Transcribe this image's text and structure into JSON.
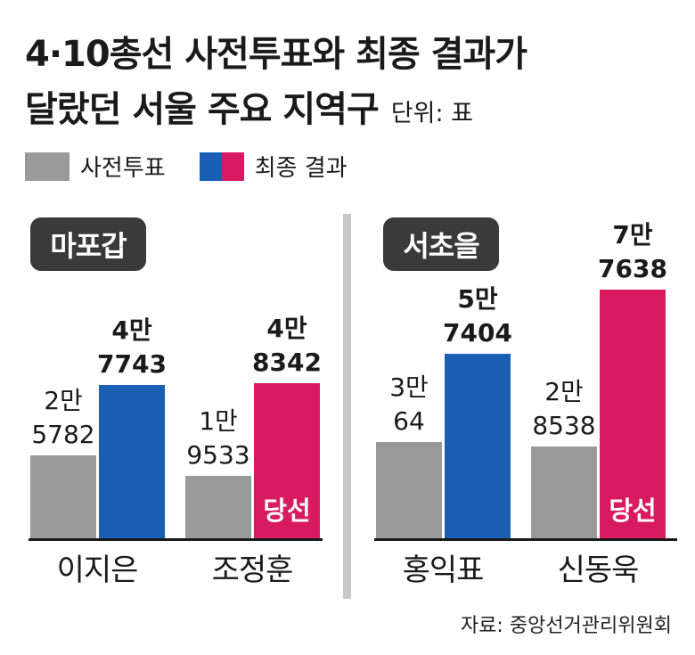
{
  "header": {
    "title_line1": "4·10총선 사전투표와 최종 결과가",
    "title_line2": "달랐던 서울 주요 지역구",
    "unit": "단위: 표"
  },
  "legend": {
    "early_vote": "사전투표",
    "final_result": "최종 결과"
  },
  "colors": {
    "early_vote": "#9a9a9a",
    "final_blue": "#1a5fb4",
    "final_red": "#d81b60",
    "district_badge": "#3a3a3a"
  },
  "districts": [
    {
      "name": "마포갑"
    },
    {
      "name": "서초을"
    }
  ],
  "candidates": [
    {
      "name": "이지은",
      "district": "마포갑",
      "party_color": "blue",
      "early_label": [
        "2만",
        "5782"
      ],
      "final_label": [
        "4만",
        "7743"
      ],
      "winner": false
    },
    {
      "name": "조정훈",
      "district": "마포갑",
      "party_color": "red",
      "early_label": [
        "1만",
        "9533"
      ],
      "final_label": [
        "4만",
        "8342"
      ],
      "winner": true
    },
    {
      "name": "홍익표",
      "district": "서초을",
      "party_color": "blue",
      "early_label": [
        "3만",
        "64"
      ],
      "final_label": [
        "5만",
        "7404"
      ],
      "winner": false
    },
    {
      "name": "신동욱",
      "district": "서초을",
      "party_color": "red",
      "early_label": [
        "2만",
        "8538"
      ],
      "final_label": [
        "7만",
        "7638"
      ],
      "winner": true
    }
  ],
  "winner_label": "당선",
  "source": "자료: 중앙선거관리위원회",
  "chart_data": {
    "type": "bar",
    "title": "4·10총선 사전투표와 최종 결과가 달랐던 서울 주요 지역구",
    "unit": "표",
    "categories": [
      "이지은",
      "조정훈",
      "홍익표",
      "신동욱"
    ],
    "groups": [
      "마포갑",
      "마포갑",
      "서초을",
      "서초을"
    ],
    "series": [
      {
        "name": "사전투표",
        "values": [
          25782,
          19533,
          30064,
          28538
        ]
      },
      {
        "name": "최종 결과",
        "values": [
          47743,
          48342,
          57404,
          77638
        ]
      }
    ],
    "winners": [
      "조정훈",
      "신동욱"
    ]
  }
}
